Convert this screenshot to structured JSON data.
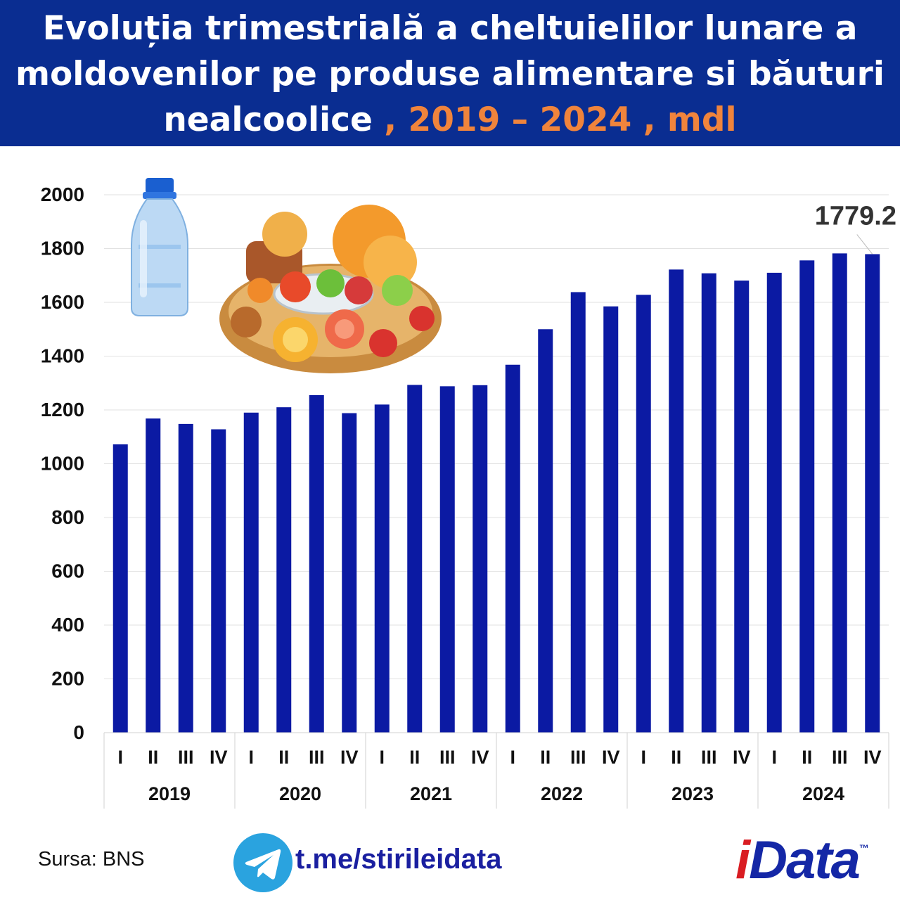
{
  "header": {
    "line1": "Evoluția trimestrială a cheltuielilor lunare a",
    "line2": "moldovenilor pe produse alimentare si băuturi",
    "line3_main": "nealcoolice",
    "line3_accent": " , 2019 – 2024 , mdl"
  },
  "footer": {
    "source": "Sursa: BNS",
    "link": "t.me/stirileidata",
    "logo_i": "i",
    "logo_rest": "Data",
    "logo_tm": "™"
  },
  "colors": {
    "bar": "#0b1aa3",
    "header_bg": "#0a2d91",
    "accent": "#f0843c"
  },
  "icons": [
    "water-bottle-icon",
    "food-platter-icon",
    "telegram-icon"
  ],
  "chart_data": {
    "type": "bar",
    "years": [
      "2019",
      "2020",
      "2021",
      "2022",
      "2023",
      "2024"
    ],
    "quarters": [
      "I",
      "II",
      "III",
      "IV"
    ],
    "values": [
      1072,
      1168,
      1148,
      1128,
      1190,
      1210,
      1255,
      1188,
      1220,
      1293,
      1288,
      1292,
      1368,
      1500,
      1638,
      1585,
      1628,
      1722,
      1708,
      1681,
      1710,
      1756,
      1782,
      1779.2
    ],
    "ylim": [
      0,
      2000
    ],
    "yticks": [
      0,
      200,
      400,
      600,
      800,
      1000,
      1200,
      1400,
      1600,
      1800,
      2000
    ],
    "annotation": {
      "index": 23,
      "label": "1779.2"
    },
    "grid": true
  }
}
